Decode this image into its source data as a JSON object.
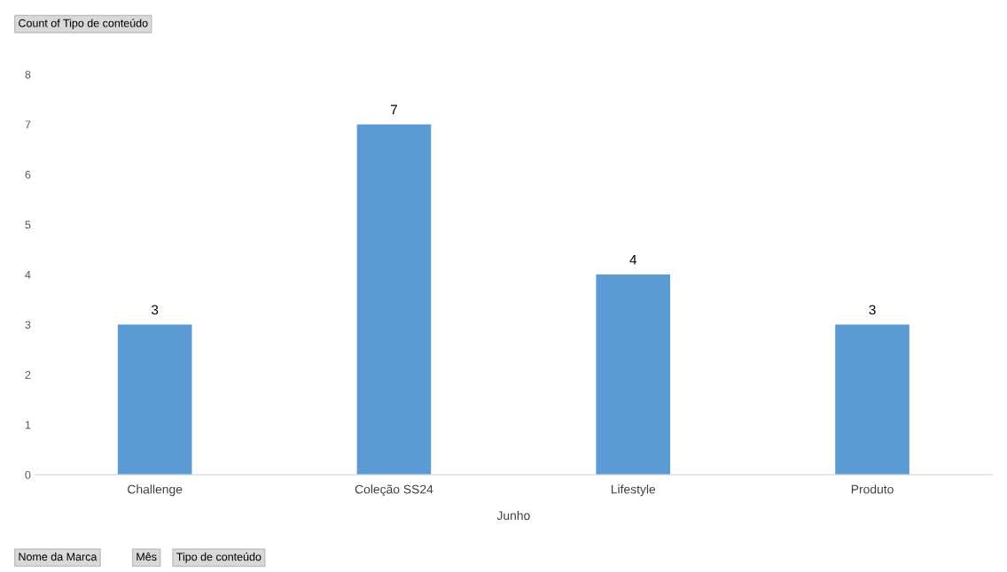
{
  "chart_data": {
    "type": "bar",
    "categories": [
      "Challenge",
      "Coleção SS24",
      "Lifestyle",
      "Produto"
    ],
    "values": [
      3,
      7,
      4,
      3
    ],
    "color": "#5b9bd5",
    "xlabel": "Junho",
    "ylim": [
      0,
      8
    ],
    "yticks": [
      0,
      1,
      2,
      3,
      4,
      5,
      6,
      7,
      8
    ],
    "grid": false,
    "legend": false,
    "data_labels": true,
    "annotations": [
      "Count of Tipo de conteúdo",
      "Nome da Marca",
      "Mês",
      "Tipo de conteúdo"
    ]
  }
}
